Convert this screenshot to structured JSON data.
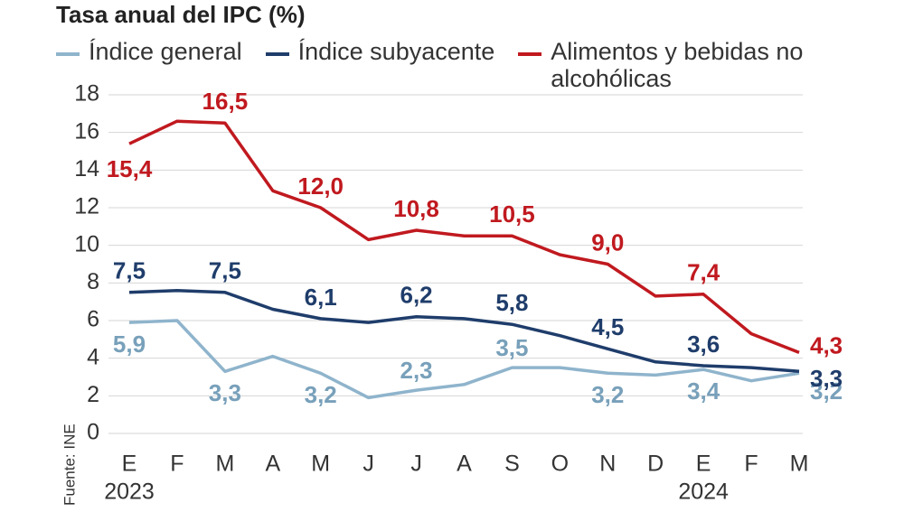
{
  "chart_data": {
    "type": "line",
    "title": "Tasa anual del IPC (%)",
    "source": "Fuente: INE",
    "categories": [
      "E",
      "F",
      "M",
      "A",
      "M",
      "J",
      "J",
      "A",
      "S",
      "O",
      "N",
      "D",
      "E",
      "F",
      "M"
    ],
    "year_labels": [
      {
        "index": 0,
        "label": "2023"
      },
      {
        "index": 12,
        "label": "2024"
      }
    ],
    "ylim": [
      0,
      18
    ],
    "yticks": [
      0,
      2,
      4,
      6,
      8,
      10,
      12,
      14,
      16,
      18
    ],
    "grid": true,
    "series": [
      {
        "name": "Índice general",
        "color": "#8fb4cc",
        "label_color": "#78a0ba",
        "values": [
          5.9,
          6.0,
          3.3,
          4.1,
          3.2,
          1.9,
          2.3,
          2.6,
          3.5,
          3.5,
          3.2,
          3.1,
          3.4,
          2.8,
          3.2
        ],
        "value_labels": [
          "5,9",
          null,
          "3,3",
          null,
          "3,2",
          null,
          "2,3",
          null,
          "3,5",
          null,
          "3,2",
          null,
          "3,4",
          null,
          "3,2"
        ]
      },
      {
        "name": "Índice subyacente",
        "color": "#1f3d6b",
        "label_color": "#1f3d6b",
        "values": [
          7.5,
          7.6,
          7.5,
          6.6,
          6.1,
          5.9,
          6.2,
          6.1,
          5.8,
          5.2,
          4.5,
          3.8,
          3.6,
          3.5,
          3.3
        ],
        "value_labels": [
          "7,5",
          null,
          "7,5",
          null,
          "6,1",
          null,
          "6,2",
          null,
          "5,8",
          null,
          "4,5",
          null,
          "3,6",
          null,
          "3,3"
        ]
      },
      {
        "name": "Alimentos y bebidas no alcohólicas",
        "color": "#c0191f",
        "label_color": "#c0191f",
        "values": [
          15.4,
          16.6,
          16.5,
          12.9,
          12.0,
          10.3,
          10.8,
          10.5,
          10.5,
          9.5,
          9.0,
          7.3,
          7.4,
          5.3,
          4.3
        ],
        "value_labels": [
          "15,4",
          null,
          "16,5",
          null,
          "12,0",
          null,
          "10,8",
          null,
          "10,5",
          null,
          "9,0",
          null,
          "7,4",
          null,
          "4,3"
        ]
      }
    ]
  }
}
